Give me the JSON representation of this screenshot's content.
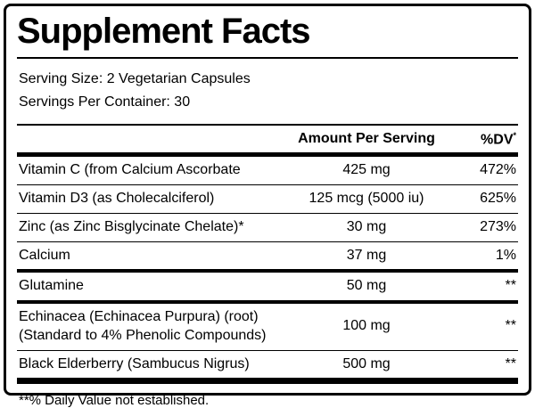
{
  "label": {
    "title": "Supplement Facts",
    "serving_size": "Serving Size: 2 Vegetarian Capsules",
    "servings_per_container": "Servings Per Container: 30",
    "footnote": "**% Daily Value not established."
  },
  "table": {
    "header_amount": "Amount Per Serving",
    "header_dv": "%DV",
    "header_dv_sup": "*",
    "rows": [
      {
        "name": "Vitamin C (from Calcium Ascorbate",
        "amount": "425 mg",
        "dv": "472%"
      },
      {
        "name": "Vitamin D3 (as Cholecalciferol)",
        "amount": "125 mcg (5000 iu)",
        "dv": "625%"
      },
      {
        "name": "Zinc (as Zinc Bisglycinate Chelate)*",
        "amount": "30 mg",
        "dv": "273%"
      },
      {
        "name": "Calcium",
        "amount": "37 mg",
        "dv": "1%"
      },
      {
        "name": "Glutamine",
        "amount": "50 mg",
        "dv": "**"
      },
      {
        "name": "Echinacea (Echinacea Purpura) (root)",
        "name_line2": "(Standard to 4% Phenolic Compounds)",
        "amount": "100 mg",
        "dv": "**"
      },
      {
        "name": "Black Elderberry (Sambucus Nigrus)",
        "amount": "500 mg",
        "dv": "**"
      }
    ]
  },
  "colors": {
    "border": "#000000",
    "background": "#ffffff",
    "text": "#000000"
  }
}
